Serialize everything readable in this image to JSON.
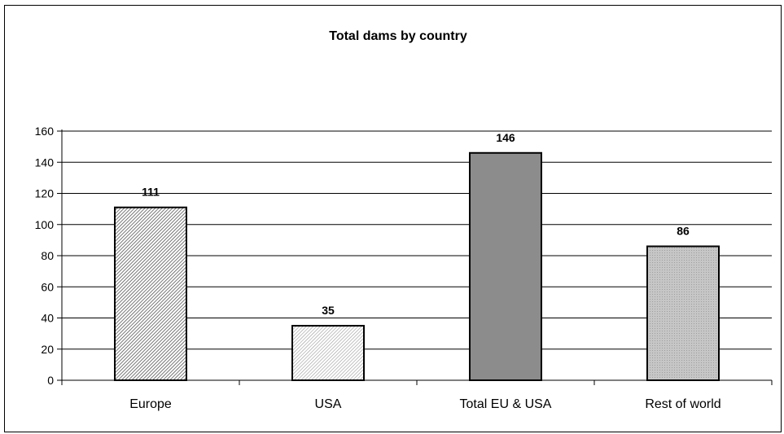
{
  "chart_data": {
    "type": "bar",
    "title": "Total dams by country",
    "xlabel": "",
    "ylabel": "",
    "categories": [
      "Europe",
      "USA",
      "Total EU & USA",
      "Rest of world"
    ],
    "series": [
      {
        "values": [
          111,
          35,
          146,
          86
        ]
      }
    ],
    "data_labels": [
      "111",
      "35",
      "146",
      "86"
    ],
    "yticks": [
      "0",
      "20",
      "40",
      "60",
      "80",
      "100",
      "120",
      "140",
      "160"
    ],
    "ylim": [
      0,
      160
    ],
    "grid": "horizontal",
    "legend": "none",
    "bar_fills": [
      "hatch-dark",
      "hatch-light",
      "#8c8c8c",
      "hatch-gray"
    ],
    "colors": {
      "axis": "#000000",
      "grid": "#000000",
      "bar_outline": "#000000",
      "solid_bar": "#8c8c8c"
    }
  }
}
